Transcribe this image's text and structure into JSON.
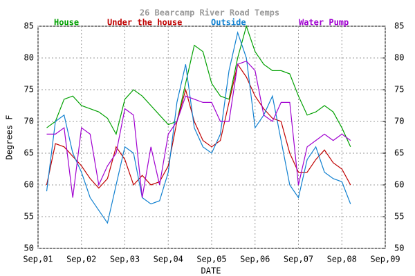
{
  "chart_data": {
    "type": "line",
    "title": "26 Bearcamp River Road Temps",
    "x_label": "DATE",
    "y_label": "Degrees F",
    "x": [
      0.2,
      0.4,
      0.6,
      0.8,
      1.0,
      1.2,
      1.4,
      1.6,
      1.8,
      2.0,
      2.2,
      2.4,
      2.6,
      2.8,
      3.0,
      3.2,
      3.4,
      3.6,
      3.8,
      4.0,
      4.2,
      4.4,
      4.6,
      4.8,
      5.0,
      5.2,
      5.4,
      5.6,
      5.8,
      6.0,
      6.2,
      6.4,
      6.6,
      6.8,
      7.0,
      7.2
    ],
    "xlim": [
      0,
      8
    ],
    "xticks": [
      {
        "value": 0,
        "label": "Sep,01"
      },
      {
        "value": 1,
        "label": "Sep,02"
      },
      {
        "value": 2,
        "label": "Sep,03"
      },
      {
        "value": 3,
        "label": "Sep,04"
      },
      {
        "value": 4,
        "label": "Sep,05"
      },
      {
        "value": 5,
        "label": "Sep,06"
      },
      {
        "value": 6,
        "label": "Sep,07"
      },
      {
        "value": 7,
        "label": "Sep,08"
      },
      {
        "value": 8,
        "label": "Sep,09"
      }
    ],
    "ylim": [
      50,
      85
    ],
    "yticks": [
      50,
      55,
      60,
      65,
      70,
      75,
      80,
      85
    ],
    "y2lim": [
      50,
      85
    ],
    "y2ticks": [
      50,
      55,
      60,
      65,
      70,
      75,
      80,
      85
    ],
    "grid": true,
    "series": [
      {
        "name": "House",
        "color": "#00a000",
        "values": [
          69,
          70,
          73.5,
          74,
          72.5,
          72,
          71.5,
          70.5,
          68,
          73.5,
          75,
          74,
          72.5,
          71,
          69.5,
          70,
          76,
          82,
          81,
          76,
          74,
          73.5,
          80,
          85,
          81,
          79,
          78,
          78,
          77.5,
          74,
          71,
          71.5,
          72.5,
          71.5,
          69,
          66
        ]
      },
      {
        "name": "Under the house",
        "color": "#c00000",
        "values": [
          60,
          66.5,
          66,
          64.5,
          63,
          61,
          59.5,
          61,
          66,
          64,
          60,
          61.5,
          60,
          60.5,
          63,
          70,
          75,
          70,
          67,
          66,
          67,
          73,
          79,
          77,
          74,
          72,
          70.5,
          70,
          65,
          62,
          62,
          64,
          65.5,
          63.5,
          62.5,
          60
        ]
      },
      {
        "name": "Outside",
        "color": "#1080d0",
        "values": [
          59,
          70,
          71,
          65,
          62,
          58,
          56,
          54,
          60,
          66,
          65,
          58,
          57,
          57.5,
          62,
          73,
          79,
          69,
          66,
          65,
          68,
          78,
          84,
          80,
          69,
          71,
          74,
          67,
          60,
          58,
          64,
          66,
          62,
          61,
          60.5,
          57
        ]
      },
      {
        "name": "Water Pump",
        "color": "#a000d0",
        "values": [
          68,
          68,
          69,
          58,
          69,
          68,
          60,
          63,
          65,
          72,
          71,
          58,
          66,
          60,
          68,
          70,
          74,
          73.5,
          73,
          73,
          70,
          70,
          79,
          79.5,
          78,
          71,
          70,
          73,
          73,
          60,
          66,
          67,
          68,
          67,
          68,
          67
        ]
      }
    ]
  }
}
